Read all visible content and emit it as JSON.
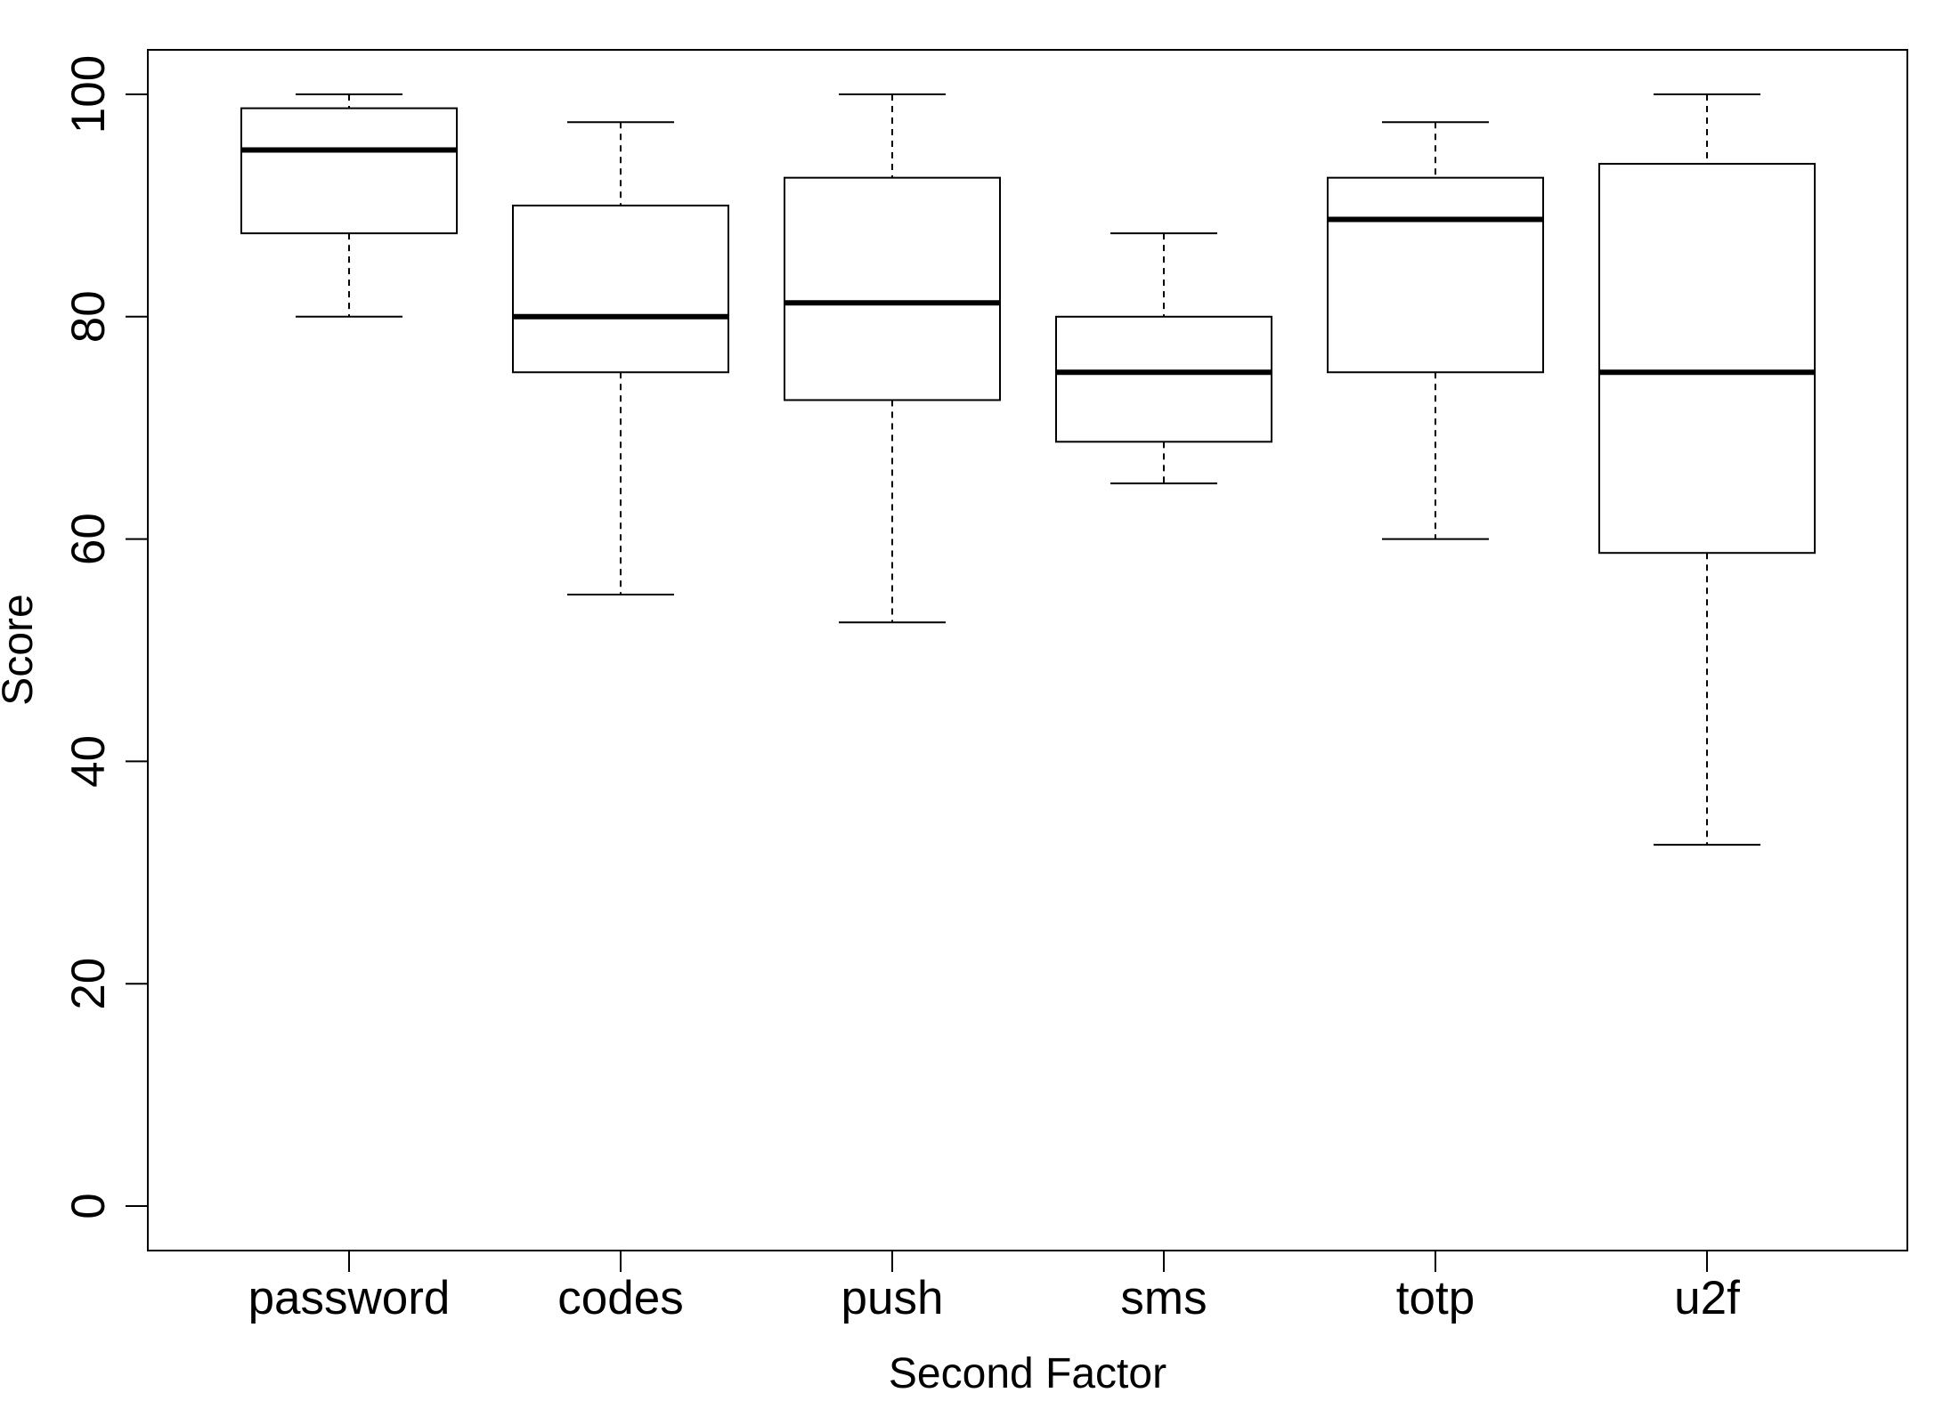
{
  "chart_data": {
    "type": "boxplot",
    "title": "",
    "xlabel": "Second Factor",
    "ylabel": "Score",
    "ylim": [
      -4,
      104
    ],
    "yticks": [
      0,
      20,
      40,
      60,
      80,
      100
    ],
    "grid": false,
    "categories": [
      "password",
      "codes",
      "push",
      "sms",
      "totp",
      "u2f"
    ],
    "boxes": [
      {
        "name": "password",
        "min": 80,
        "q1": 87.5,
        "median": 95,
        "q3": 98.75,
        "max": 100
      },
      {
        "name": "codes",
        "min": 55,
        "q1": 75,
        "median": 80,
        "q3": 90,
        "max": 97.5
      },
      {
        "name": "push",
        "min": 52.5,
        "q1": 72.5,
        "median": 81.25,
        "q3": 92.5,
        "max": 100
      },
      {
        "name": "sms",
        "min": 65,
        "q1": 68.75,
        "median": 75,
        "q3": 80,
        "max": 87.5
      },
      {
        "name": "totp",
        "min": 60,
        "q1": 75,
        "median": 88.75,
        "q3": 92.5,
        "max": 97.5
      },
      {
        "name": "u2f",
        "min": 32.5,
        "q1": 58.75,
        "median": 75,
        "q3": 93.75,
        "max": 100
      }
    ]
  }
}
